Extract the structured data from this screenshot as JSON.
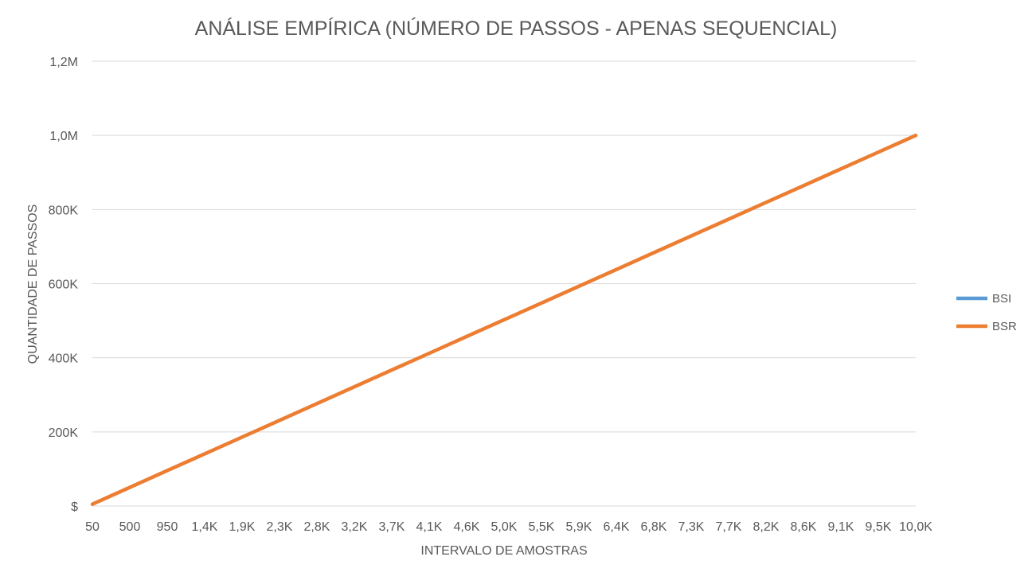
{
  "chart_data": {
    "type": "line",
    "title": "ANÁLISE EMPÍRICA (NÚMERO DE PASSOS - APENAS SEQUENCIAL)",
    "xlabel": "INTERVALO DE AMOSTRAS",
    "ylabel": "QUANTIDADE DE PASSOS",
    "x_tick_labels": [
      "50",
      "500",
      "950",
      "1,4K",
      "1,9K",
      "2,3K",
      "2,8K",
      "3,2K",
      "3,7K",
      "4,1K",
      "4,6K",
      "5,0K",
      "5,5K",
      "5,9K",
      "6,4K",
      "6,8K",
      "7,3K",
      "7,7K",
      "8,2K",
      "8,6K",
      "9,1K",
      "9,5K",
      "10,0K"
    ],
    "y_ticks": [
      {
        "value": 0,
        "label": "$"
      },
      {
        "value": 200000,
        "label": "200K"
      },
      {
        "value": 400000,
        "label": "400K"
      },
      {
        "value": 600000,
        "label": "600K"
      },
      {
        "value": 800000,
        "label": "800K"
      },
      {
        "value": 1000000,
        "label": "1,0M"
      },
      {
        "value": 1200000,
        "label": "1,2M"
      }
    ],
    "xlim": [
      50,
      10000
    ],
    "ylim": [
      0,
      1200000
    ],
    "grid": true,
    "legend_position": "right",
    "series": [
      {
        "name": "BSI",
        "color": "#5b9bd5",
        "x": [
          50,
          500,
          950,
          1400,
          1900,
          2300,
          2800,
          3200,
          3700,
          4100,
          4600,
          5000,
          5500,
          5900,
          6400,
          6800,
          7300,
          7700,
          8200,
          8600,
          9100,
          9500,
          10000
        ],
        "values": [
          5000,
          50000,
          95000,
          140000,
          190000,
          230000,
          280000,
          320000,
          370000,
          410000,
          460000,
          500000,
          550000,
          590000,
          640000,
          680000,
          730000,
          770000,
          820000,
          860000,
          910000,
          950000,
          1000000
        ]
      },
      {
        "name": "BSR",
        "color": "#ed7d31",
        "x": [
          50,
          500,
          950,
          1400,
          1900,
          2300,
          2800,
          3200,
          3700,
          4100,
          4600,
          5000,
          5500,
          5900,
          6400,
          6800,
          7300,
          7700,
          8200,
          8600,
          9100,
          9500,
          10000
        ],
        "values": [
          5000,
          50000,
          95000,
          140000,
          190000,
          230000,
          280000,
          320000,
          370000,
          410000,
          460000,
          500000,
          550000,
          590000,
          640000,
          680000,
          730000,
          770000,
          820000,
          860000,
          910000,
          950000,
          1000000
        ]
      }
    ]
  }
}
